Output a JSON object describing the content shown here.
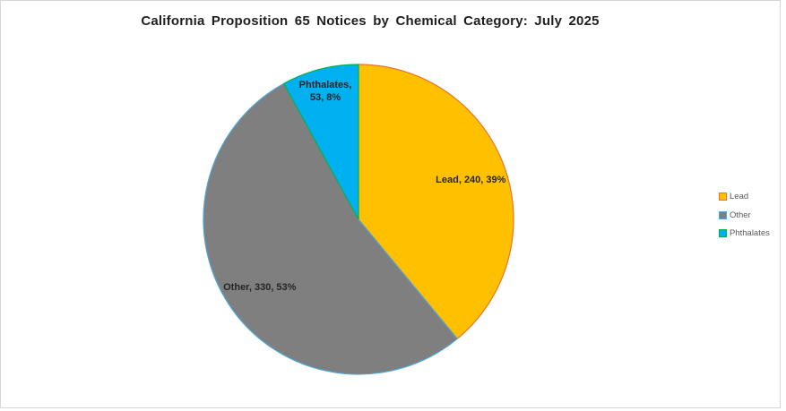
{
  "window": {
    "background": "#FFFFFF",
    "frame_border_color": "#D6D6D6"
  },
  "chart_data": {
    "type": "pie",
    "title": "California Proposition 65 Notices by Chemical Category: July 2025",
    "categories": [
      "Lead",
      "Other",
      "Phthalates"
    ],
    "values": [
      240,
      330,
      53
    ],
    "percentages": [
      39,
      53,
      8
    ],
    "slices": [
      {
        "name": "Lead",
        "value": 240,
        "pct": 39,
        "fill": "#FFC000",
        "border": "#E97132",
        "label_lines": [
          "Lead, 240, 39%"
        ]
      },
      {
        "name": "Other",
        "value": 330,
        "pct": 53,
        "fill": "#7F7F7F",
        "border": "#4EA6DC",
        "label_lines": [
          "Other, 330, 53%"
        ]
      },
      {
        "name": "Phthalates",
        "value": 53,
        "pct": 8,
        "fill": "#00B0F0",
        "border": "#00B050",
        "label_lines": [
          "Phthalates,",
          "53, 8%"
        ]
      }
    ],
    "legend": {
      "position": "right",
      "entries": [
        "Lead",
        "Other",
        "Phthalates"
      ]
    },
    "label_color": "#262626",
    "legend_text_color": "#595959",
    "start_angle_deg": 0,
    "direction": "clockwise",
    "grid": false
  }
}
